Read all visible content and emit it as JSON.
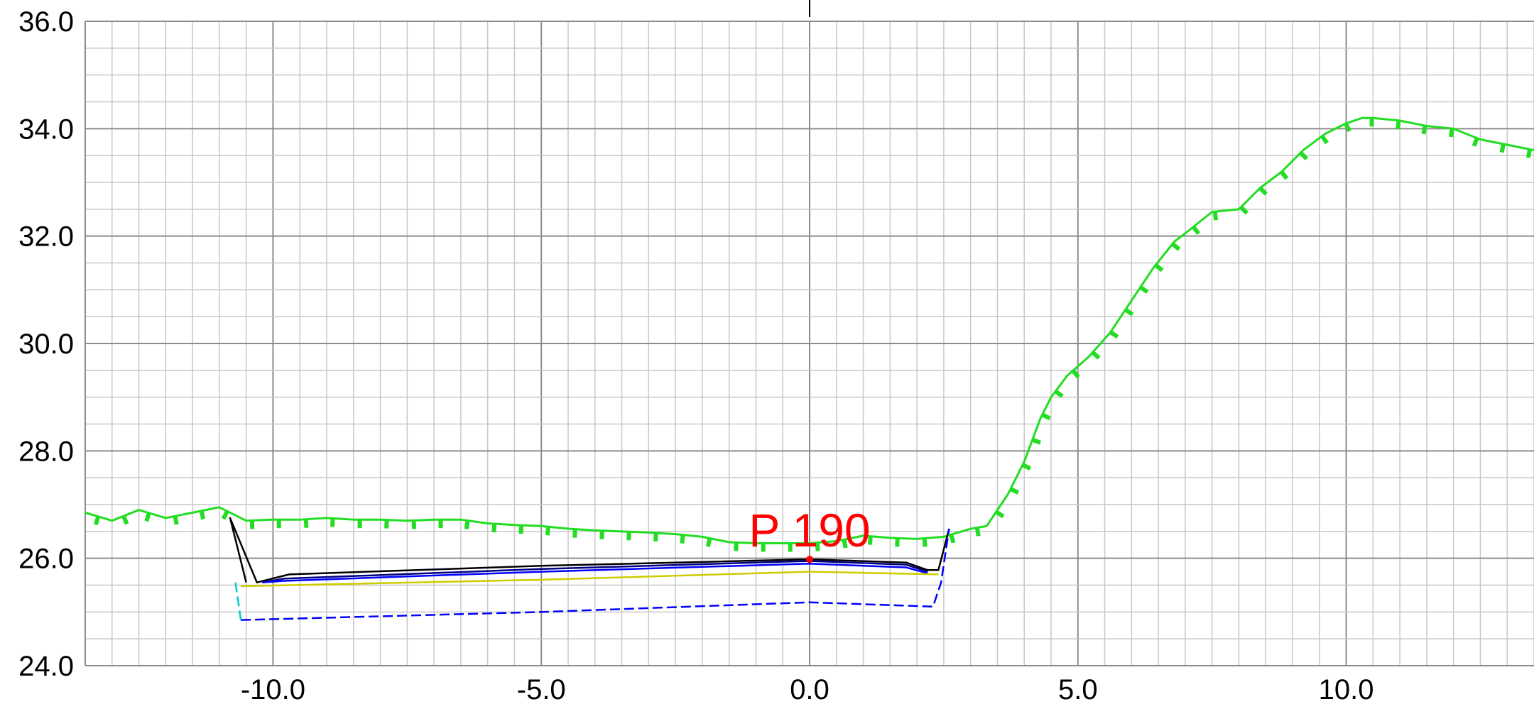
{
  "chart_data": {
    "type": "line",
    "title": "",
    "xlabel": "",
    "ylabel": "",
    "xlim": [
      -13.5,
      13.5
    ],
    "ylim": [
      24.0,
      36.0
    ],
    "x_ticks": [
      -10.0,
      -5.0,
      0.0,
      5.0,
      10.0
    ],
    "x_tick_labels": [
      "-10.0",
      "-5.0",
      "0.0",
      "5.0",
      "10.0"
    ],
    "y_ticks": [
      24.0,
      26.0,
      28.0,
      30.0,
      32.0,
      34.0,
      36.0
    ],
    "y_tick_labels": [
      "24.0",
      "26.0",
      "28.0",
      "30.0",
      "32.0",
      "34.0",
      "36.0"
    ],
    "grid": true,
    "grid_minor_step": 0.5,
    "annotation": {
      "text": "P 190",
      "x": 0.0,
      "y": 25.98,
      "color": "#ff0000"
    },
    "colors": {
      "terrain": "#22dd22",
      "outline": "#000000",
      "navy": "#000080",
      "blue": "#0000ff",
      "yellow": "#cccc00",
      "cyan": "#00cccc",
      "grid_major": "#8c8c8c",
      "grid_minor": "#c8c8c8"
    },
    "series": [
      {
        "key": "terrain",
        "style": "hachured",
        "color": "#22dd22",
        "x": [
          -13.5,
          -13.0,
          -12.5,
          -12.0,
          -11.5,
          -11.0,
          -10.5,
          -10.0,
          -9.5,
          -9.0,
          -8.5,
          -8.0,
          -7.5,
          -7.0,
          -6.5,
          -6.0,
          -5.5,
          -5.0,
          -4.5,
          -4.0,
          -3.5,
          -3.0,
          -2.5,
          -2.0,
          -1.5,
          -1.0,
          -0.5,
          0.0,
          0.5,
          1.0,
          1.5,
          2.0,
          2.5,
          3.0,
          3.3,
          3.7,
          4.0,
          4.3,
          4.5,
          4.8,
          5.2,
          5.6,
          6.0,
          6.4,
          6.8,
          7.0,
          7.5,
          8.0,
          8.4,
          8.8,
          9.2,
          9.6,
          10.0,
          10.3,
          10.5,
          11.0,
          11.5,
          12.0,
          12.5,
          13.0,
          13.5
        ],
        "y": [
          26.85,
          26.7,
          26.9,
          26.75,
          26.85,
          26.95,
          26.7,
          26.72,
          26.72,
          26.75,
          26.72,
          26.72,
          26.7,
          26.72,
          26.72,
          26.65,
          26.62,
          26.6,
          26.55,
          26.52,
          26.5,
          26.48,
          26.45,
          26.4,
          26.3,
          26.28,
          26.28,
          26.28,
          26.32,
          26.42,
          26.38,
          26.36,
          26.4,
          26.55,
          26.6,
          27.2,
          27.8,
          28.6,
          29.0,
          29.4,
          29.75,
          30.2,
          30.8,
          31.4,
          31.9,
          32.05,
          32.45,
          32.5,
          32.9,
          33.2,
          33.6,
          33.9,
          34.1,
          34.2,
          34.2,
          34.15,
          34.05,
          34.0,
          33.8,
          33.7,
          33.6
        ]
      },
      {
        "key": "outline",
        "color": "#000000",
        "x": [
          -10.5,
          -10.8,
          -10.3,
          -9.7,
          -5.0,
          0.0,
          1.8,
          2.2,
          2.4,
          2.6
        ],
        "y": [
          25.55,
          26.75,
          25.55,
          25.7,
          25.86,
          25.98,
          25.92,
          25.78,
          25.78,
          26.55
        ]
      },
      {
        "key": "navy",
        "color": "#000080",
        "x": [
          -10.2,
          -9.8,
          -5.0,
          0.0,
          1.8,
          2.2
        ],
        "y": [
          25.55,
          25.62,
          25.8,
          25.95,
          25.88,
          25.75
        ]
      },
      {
        "key": "blue",
        "color": "#0000ff",
        "x": [
          -10.2,
          -9.8,
          -5.0,
          0.0,
          1.8,
          2.2
        ],
        "y": [
          25.55,
          25.58,
          25.75,
          25.9,
          25.83,
          25.72
        ]
      },
      {
        "key": "yellow",
        "color": "#cccc00",
        "x": [
          -10.6,
          -5.0,
          0.0,
          2.4
        ],
        "y": [
          25.48,
          25.6,
          25.75,
          25.7
        ]
      },
      {
        "key": "base",
        "style": "dashed",
        "color": "#0000ff",
        "x": [
          -10.6,
          -5.0,
          0.0,
          2.3,
          2.45,
          2.6
        ],
        "y": [
          24.85,
          25.0,
          25.18,
          25.1,
          25.55,
          26.55
        ]
      },
      {
        "key": "left-wall",
        "style": "dashed",
        "color": "#00cccc",
        "x": [
          -10.7,
          -10.6
        ],
        "y": [
          25.55,
          24.85
        ]
      }
    ]
  }
}
